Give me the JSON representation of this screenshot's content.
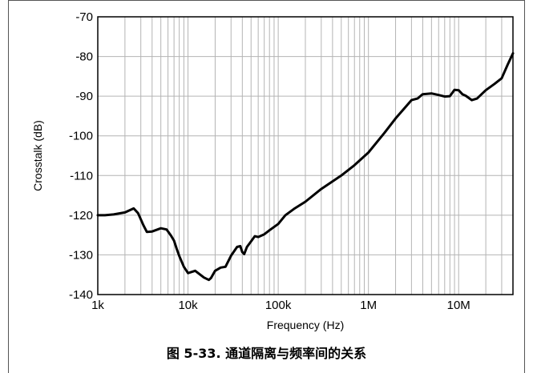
{
  "caption": "图 5-33. 通道隔离与频率间的关系",
  "chart_data": {
    "type": "line",
    "title": "",
    "xlabel": "Frequency (Hz)",
    "ylabel": "Crosstalk (dB)",
    "xscale": "log",
    "xlim": [
      1000,
      40000000
    ],
    "ylim": [
      -140,
      -70
    ],
    "x_ticks": [
      {
        "value": 1000,
        "label": "1k"
      },
      {
        "value": 10000,
        "label": "10k"
      },
      {
        "value": 100000,
        "label": "100k"
      },
      {
        "value": 1000000,
        "label": "1M"
      },
      {
        "value": 10000000,
        "label": "10M"
      }
    ],
    "y_ticks": [
      {
        "value": -70,
        "label": "-70"
      },
      {
        "value": -80,
        "label": "-80"
      },
      {
        "value": -90,
        "label": "-90"
      },
      {
        "value": -100,
        "label": "-100"
      },
      {
        "value": -110,
        "label": "-110"
      },
      {
        "value": -120,
        "label": "-120"
      },
      {
        "value": -130,
        "label": "-130"
      },
      {
        "value": -140,
        "label": "-140"
      }
    ],
    "grid": "log-minor vertical and major horizontal",
    "line_color": "#000000",
    "series": [
      {
        "x": [
          1000,
          1200,
          1500,
          2000,
          2500,
          2800,
          3200,
          3500,
          4000,
          5000,
          5800,
          6500,
          7000,
          7500,
          8000,
          9000,
          10000,
          12000,
          15000,
          17000,
          18000,
          20000,
          23000,
          26000,
          30000,
          35000,
          38000,
          40000,
          42000,
          45000,
          50000,
          55000,
          60000,
          70000,
          80000,
          100000,
          120000,
          150000,
          200000,
          300000,
          500000,
          700000,
          1000000,
          1500000,
          2000000,
          3000000,
          3500000,
          4000000,
          5000000,
          6000000,
          7000000,
          8000000,
          9000000,
          10000000,
          11000000,
          12000000,
          14000000,
          16000000,
          20000000,
          25000000,
          30000000,
          35000000,
          40000000
        ],
        "y": [
          -120,
          -120,
          -119.8,
          -119.3,
          -118.3,
          -119.5,
          -122.5,
          -124.2,
          -124.1,
          -123.3,
          -123.6,
          -125.2,
          -126.4,
          -128.5,
          -130.3,
          -133,
          -134.6,
          -134,
          -135.7,
          -136.3,
          -135.8,
          -134,
          -133.2,
          -133,
          -130.2,
          -128,
          -127.8,
          -129.3,
          -129.8,
          -128,
          -126.6,
          -125.3,
          -125.5,
          -124.8,
          -123.8,
          -122.2,
          -120,
          -118.4,
          -116.6,
          -113.4,
          -110,
          -107.4,
          -104.2,
          -99.3,
          -95.6,
          -91,
          -90.6,
          -89.5,
          -89.3,
          -89.7,
          -90.1,
          -90,
          -88.4,
          -88.5,
          -89.5,
          -89.9,
          -91,
          -90.6,
          -88.5,
          -86.9,
          -85.5,
          -82,
          -79.2
        ]
      }
    ]
  }
}
